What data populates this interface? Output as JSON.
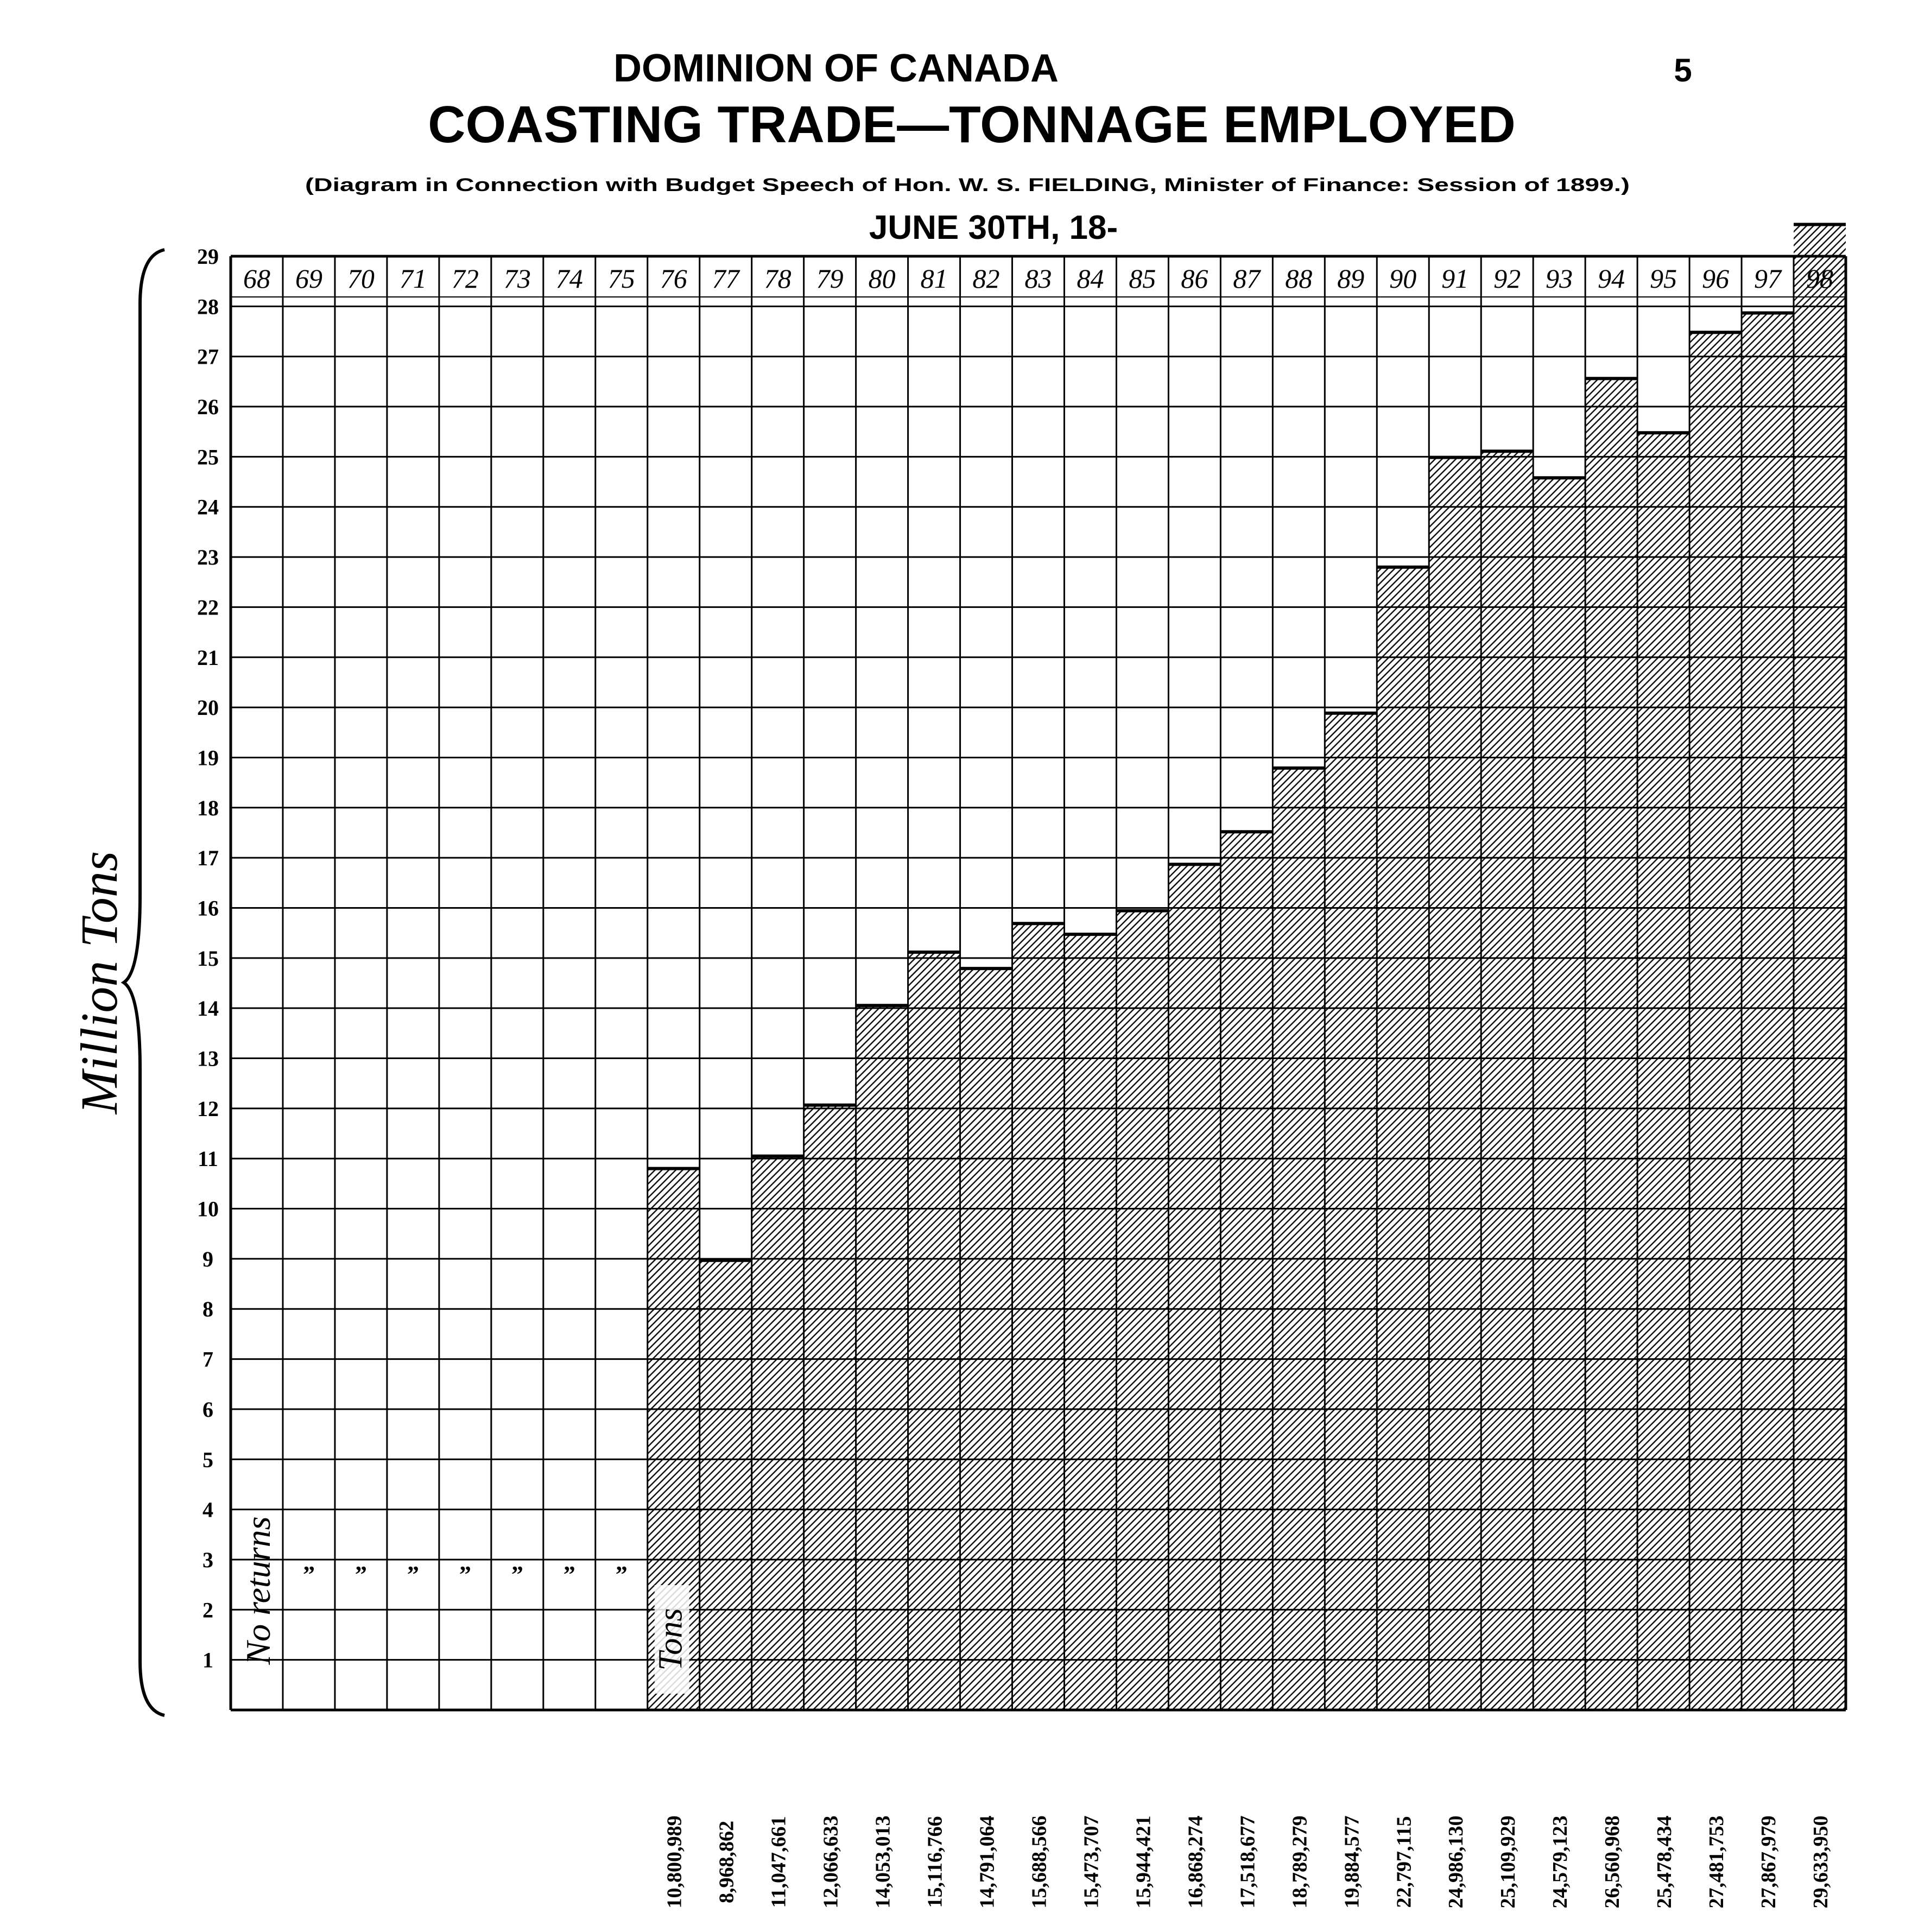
{
  "header": {
    "country": "DOMINION OF CANADA",
    "page_number": "5",
    "title": "COASTING TRADE—TONNAGE EMPLOYED",
    "subtitle": "(Diagram in Connection with Budget Speech of Hon. W. S. FIELDING, Minister of Finance: Session of 1899.)",
    "date_caption": "JUNE 30TH, 18-"
  },
  "chart_data": {
    "type": "bar",
    "ylabel": "Million Tons",
    "ylim": [
      0,
      29
    ],
    "yticks": [
      "1",
      "2",
      "3",
      "4",
      "5",
      "6",
      "7",
      "8",
      "9",
      "10",
      "11",
      "12",
      "13",
      "14",
      "15",
      "16",
      "17",
      "18",
      "19",
      "20",
      "21",
      "22",
      "23",
      "24",
      "25",
      "26",
      "27",
      "28",
      "29"
    ],
    "categories": [
      "68",
      "69",
      "70",
      "71",
      "72",
      "73",
      "74",
      "75",
      "76",
      "77",
      "78",
      "79",
      "80",
      "81",
      "82",
      "83",
      "84",
      "85",
      "86",
      "87",
      "88",
      "89",
      "90",
      "91",
      "92",
      "93",
      "94",
      "95",
      "96",
      "97",
      "98"
    ],
    "values": [
      null,
      null,
      null,
      null,
      null,
      null,
      null,
      null,
      10800989,
      8968862,
      11047661,
      12066633,
      14053013,
      15116766,
      14791064,
      15688566,
      15473707,
      15944421,
      16868274,
      17518677,
      18789279,
      19884577,
      22797115,
      24986130,
      25109929,
      24579123,
      26560968,
      25478434,
      27481753,
      27867979,
      29633950
    ],
    "value_labels": [
      "",
      "",
      "",
      "",
      "",
      "",
      "",
      "",
      "10,800,989",
      "8,968,862",
      "11,047,661",
      "12,066,633",
      "14,053,013",
      "15,116,766",
      "14,791,064",
      "15,688,566",
      "15,473,707",
      "15,944,421",
      "16,868,274",
      "17,518,677",
      "18,789,279",
      "19,884,577",
      "22,797,115",
      "24,986,130",
      "25,109,929",
      "24,579,123",
      "26,560,968",
      "25,478,434",
      "27,481,753",
      "27,867,979",
      "29,633,950"
    ],
    "annotations": {
      "no_returns": "No returns",
      "ditto_mark": "”",
      "tons": "Tons"
    },
    "grid": true,
    "fill_pattern": "diagonal hatching"
  }
}
